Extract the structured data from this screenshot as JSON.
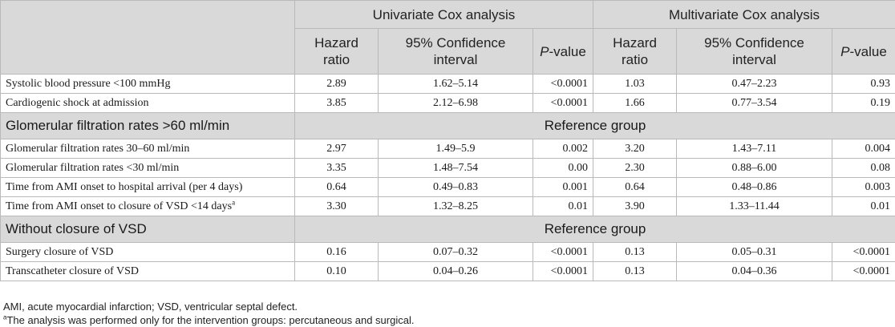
{
  "table": {
    "groups": [
      "Univariate Cox analysis",
      "Multivariate Cox analysis"
    ],
    "sub_headers": {
      "hr_line1": "Hazard",
      "hr_line2": "ratio",
      "ci_line1": "95% Confidence",
      "ci_line2": "interval",
      "p_italic": "P",
      "p_rest": "-value"
    },
    "rows": [
      {
        "label": "Systolic blood pressure <100 mmHg",
        "u_hr": "2.89",
        "u_ci": "1.62–5.14",
        "u_p": "<0.0001",
        "m_hr": "1.03",
        "m_ci": "0.47–2.23",
        "m_p": "0.93"
      },
      {
        "label": "Cardiogenic shock at admission",
        "u_hr": "3.85",
        "u_ci": "2.12–6.98",
        "u_p": "<0.0001",
        "m_hr": "1.66",
        "m_ci": "0.77–3.54",
        "m_p": "0.19"
      }
    ],
    "ref_group_1": {
      "label": "Glomerular filtration rates >60 ml/min",
      "text": "Reference group"
    },
    "rows_2": [
      {
        "label": "Glomerular filtration rates 30–60 ml/min",
        "u_hr": "2.97",
        "u_ci": "1.49–5.9",
        "u_p": "0.002",
        "m_hr": "3.20",
        "m_ci": "1.43–7.11",
        "m_p": "0.004"
      },
      {
        "label": "Glomerular filtration rates <30 ml/min",
        "u_hr": "3.35",
        "u_ci": "1.48–7.54",
        "u_p": "0.00",
        "m_hr": "2.30",
        "m_ci": "0.88–6.00",
        "m_p": "0.08"
      },
      {
        "label": "Time from AMI onset to hospital arrival (per 4 days)",
        "u_hr": "0.64",
        "u_ci": "0.49–0.83",
        "u_p": "0.001",
        "m_hr": "0.64",
        "m_ci": "0.48–0.86",
        "m_p": "0.003"
      },
      {
        "label": "Time from AMI onset to closure of VSD <14 days",
        "label_sup": "a",
        "u_hr": "3.30",
        "u_ci": "1.32–8.25",
        "u_p": "0.01",
        "m_hr": "3.90",
        "m_ci": "1.33–11.44",
        "m_p": "0.01"
      }
    ],
    "ref_group_2": {
      "label": "Without closure of VSD",
      "text": "Reference group"
    },
    "rows_3": [
      {
        "label": "Surgery closure of VSD",
        "u_hr": "0.16",
        "u_ci": "0.07–0.32",
        "u_p": "<0.0001",
        "m_hr": "0.13",
        "m_ci": "0.05–0.31",
        "m_p": "<0.0001"
      },
      {
        "label": "Transcatheter closure of VSD",
        "u_hr": "0.10",
        "u_ci": "0.04–0.26",
        "u_p": "<0.0001",
        "m_hr": "0.13",
        "m_ci": "0.04–0.36",
        "m_p": "<0.0001"
      }
    ]
  },
  "footnotes": {
    "abbrev": "AMI, acute myocardial infarction; VSD, ventricular septal defect.",
    "note_marker": "a",
    "note_text": "The analysis was performed only for the intervention groups: percutaneous and surgical."
  }
}
